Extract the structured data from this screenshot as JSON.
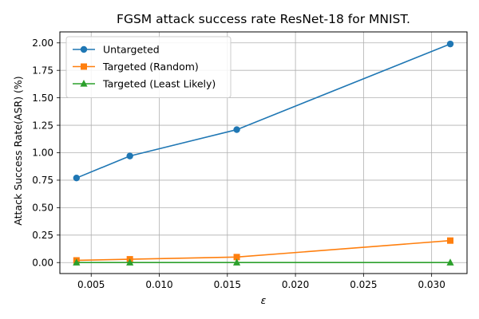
{
  "chart_data": {
    "type": "line",
    "title": "FGSM attack success rate ResNet-18 for MNIST.",
    "xlabel": "ε",
    "ylabel": "Attack Success Rate(ASR) (%)",
    "x": [
      0.00392,
      0.00784,
      0.01569,
      0.03137
    ],
    "xlim": [
      0.0027,
      0.0326
    ],
    "ylim": [
      -0.1,
      2.1
    ],
    "xticks": [
      0.005,
      0.01,
      0.015,
      0.02,
      0.025,
      0.03
    ],
    "xtick_labels": [
      "0.005",
      "0.010",
      "0.015",
      "0.020",
      "0.025",
      "0.030"
    ],
    "yticks": [
      0.0,
      0.25,
      0.5,
      0.75,
      1.0,
      1.25,
      1.5,
      1.75,
      2.0
    ],
    "ytick_labels": [
      "0.00",
      "0.25",
      "0.50",
      "0.75",
      "1.00",
      "1.25",
      "1.50",
      "1.75",
      "2.00"
    ],
    "grid": true,
    "legend_position": "top-left",
    "series": [
      {
        "name": "Untargeted",
        "values": [
          0.77,
          0.97,
          1.21,
          1.99
        ],
        "color": "#1f77b4",
        "marker": "circle"
      },
      {
        "name": "Targeted (Random)",
        "values": [
          0.02,
          0.03,
          0.05,
          0.2
        ],
        "color": "#ff7f0e",
        "marker": "square"
      },
      {
        "name": "Targeted (Least Likely)",
        "values": [
          0.0,
          0.0,
          0.0,
          0.0
        ],
        "color": "#2ca02c",
        "marker": "triangle"
      }
    ]
  }
}
